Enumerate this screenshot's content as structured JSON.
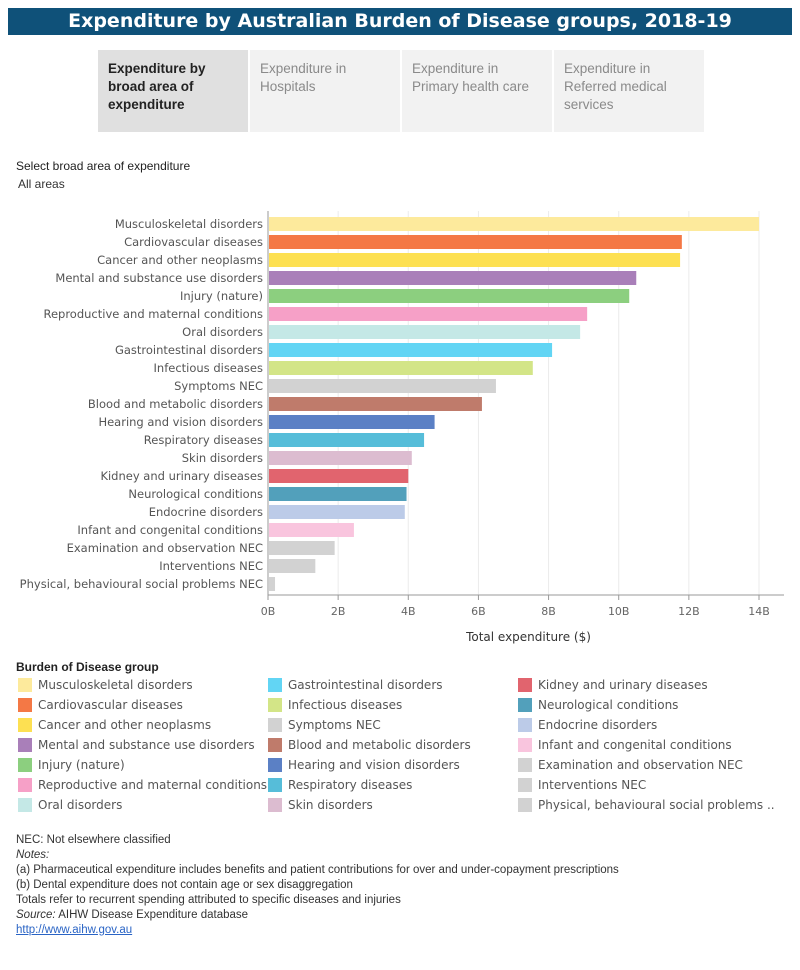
{
  "title": "Expenditure by Australian Burden of Disease groups, 2018-19",
  "tabs": [
    {
      "label": "Expenditure by broad area of expenditure",
      "active": true
    },
    {
      "label": "Expenditure in Hospitals",
      "active": false
    },
    {
      "label": "Expenditure in Primary health care",
      "active": false
    },
    {
      "label": "Expenditure in Referred medical services",
      "active": false
    }
  ],
  "filter": {
    "label": "Select broad area of expenditure",
    "value": "All areas"
  },
  "chart_data": {
    "type": "bar",
    "orientation": "horizontal",
    "xlabel": "Total expenditure ($)",
    "xlim": [
      0,
      14
    ],
    "unit": "B",
    "ticks": [
      "0B",
      "2B",
      "4B",
      "6B",
      "8B",
      "10B",
      "12B",
      "14B"
    ],
    "grid": true,
    "categories": [
      "Musculoskeletal disorders",
      "Cardiovascular diseases",
      "Cancer and other neoplasms",
      "Mental and substance use disorders",
      "Injury (nature)",
      "Reproductive and maternal conditions",
      "Oral disorders",
      "Gastrointestinal disorders",
      "Infectious diseases",
      "Symptoms NEC",
      "Blood and metabolic disorders",
      "Hearing and vision disorders",
      "Respiratory diseases",
      "Skin disorders",
      "Kidney and urinary diseases",
      "Neurological conditions",
      "Endocrine disorders",
      "Infant and congenital conditions",
      "Examination and observation NEC",
      "Interventions NEC",
      "Physical, behavioural social problems NEC"
    ],
    "values": [
      14.0,
      11.8,
      11.75,
      10.5,
      10.3,
      9.1,
      8.9,
      8.1,
      7.55,
      6.5,
      6.1,
      4.75,
      4.45,
      4.1,
      4.0,
      3.95,
      3.9,
      2.45,
      1.9,
      1.35,
      0.2
    ],
    "colors": [
      "#fdea9c",
      "#f47845",
      "#fde052",
      "#a97fb9",
      "#8ccf7f",
      "#f6a0c7",
      "#c4e8e6",
      "#62d5f4",
      "#d3e587",
      "#d2d2d2",
      "#bf7b6b",
      "#5b80c5",
      "#56bdd9",
      "#dcbcd0",
      "#e1646e",
      "#52a0bb",
      "#bccbe8",
      "#f9c5de",
      "#d2d2d2",
      "#d2d2d2",
      "#d2d2d2"
    ]
  },
  "legend": {
    "title": "Burden of Disease group",
    "items": [
      {
        "label": "Musculoskeletal disorders",
        "color": "#fdea9c"
      },
      {
        "label": "Cardiovascular diseases",
        "color": "#f47845"
      },
      {
        "label": "Cancer and other neoplasms",
        "color": "#fde052"
      },
      {
        "label": "Mental and substance use disorders",
        "color": "#a97fb9"
      },
      {
        "label": "Injury (nature)",
        "color": "#8ccf7f"
      },
      {
        "label": "Reproductive and maternal conditions",
        "color": "#f6a0c7"
      },
      {
        "label": "Oral disorders",
        "color": "#c4e8e6"
      },
      {
        "label": "Gastrointestinal disorders",
        "color": "#62d5f4"
      },
      {
        "label": "Infectious diseases",
        "color": "#d3e587"
      },
      {
        "label": "Symptoms NEC",
        "color": "#d2d2d2"
      },
      {
        "label": "Blood and metabolic disorders",
        "color": "#bf7b6b"
      },
      {
        "label": "Hearing and vision disorders",
        "color": "#5b80c5"
      },
      {
        "label": "Respiratory diseases",
        "color": "#56bdd9"
      },
      {
        "label": "Skin disorders",
        "color": "#dcbcd0"
      },
      {
        "label": "Kidney and urinary diseases",
        "color": "#e1646e"
      },
      {
        "label": "Neurological conditions",
        "color": "#52a0bb"
      },
      {
        "label": "Endocrine disorders",
        "color": "#bccbe8"
      },
      {
        "label": "Infant and congenital conditions",
        "color": "#f9c5de"
      },
      {
        "label": "Examination and observation NEC",
        "color": "#d2d2d2"
      },
      {
        "label": "Interventions NEC",
        "color": "#d2d2d2"
      },
      {
        "label": "Physical, behavioural social problems ..",
        "color": "#d2d2d2"
      }
    ]
  },
  "notes": {
    "nec": "NEC: Not elsewhere classified",
    "heading": "Notes:",
    "note_a": "(a) Pharmaceutical expenditure includes benefits and patient contributions for over and under-copayment prescriptions",
    "note_b": "(b) Dental expenditure does not contain age or sex disaggregation",
    "totals": "Totals refer to recurrent spending attributed to specific diseases and injuries",
    "source_label": "Source:",
    "source_text": " AIHW Disease Expenditure database",
    "link": "http://www.aihw.gov.au"
  }
}
